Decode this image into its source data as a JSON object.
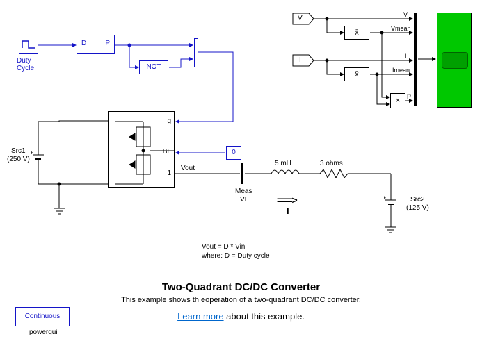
{
  "colors": {
    "blue": "#1414c8",
    "black": "#000000",
    "green": "#00c800",
    "link": "#0066cc",
    "bg": "#ffffff"
  },
  "duty_cycle": {
    "label": "Duty\nCycle"
  },
  "dp_block": {
    "D": "D",
    "P": "P"
  },
  "not_block": {
    "label": "NOT"
  },
  "from_v": {
    "tag": "V"
  },
  "from_i": {
    "tag": "I"
  },
  "mean_v": {
    "symbol": "x̄",
    "out": "Vmean",
    "in": "V"
  },
  "mean_i": {
    "symbol": "x̄",
    "out": "Imean",
    "in": "I"
  },
  "product": {
    "symbol": "×",
    "out": "P"
  },
  "bridge": {
    "g": "g",
    "BL": "BL",
    "one": "1"
  },
  "const_bl": {
    "value": "0"
  },
  "src1": {
    "label": "Src1",
    "value": "(250 V)"
  },
  "src2": {
    "label": "Src2",
    "value": "(125 V)"
  },
  "vout_label": "Vout",
  "meas": {
    "label1": "Meas",
    "label2": "VI"
  },
  "inductor": {
    "label": "5 mH"
  },
  "resistor": {
    "label": "3 ohms"
  },
  "current_arrow": {
    "symbol": "===>",
    "label": "I"
  },
  "equation": {
    "line1": "Vout = D * Vin",
    "line2": "where: D = Duty cycle"
  },
  "title": "Two-Quadrant DC/DC Converter",
  "subtitle": "This example shows th eoperation of a two-quadrant DC/DC converter.",
  "learn_more": "Learn more",
  "learn_more_rest": " about this example.",
  "powergui": {
    "label": "Continuous",
    "name": "powergui"
  }
}
